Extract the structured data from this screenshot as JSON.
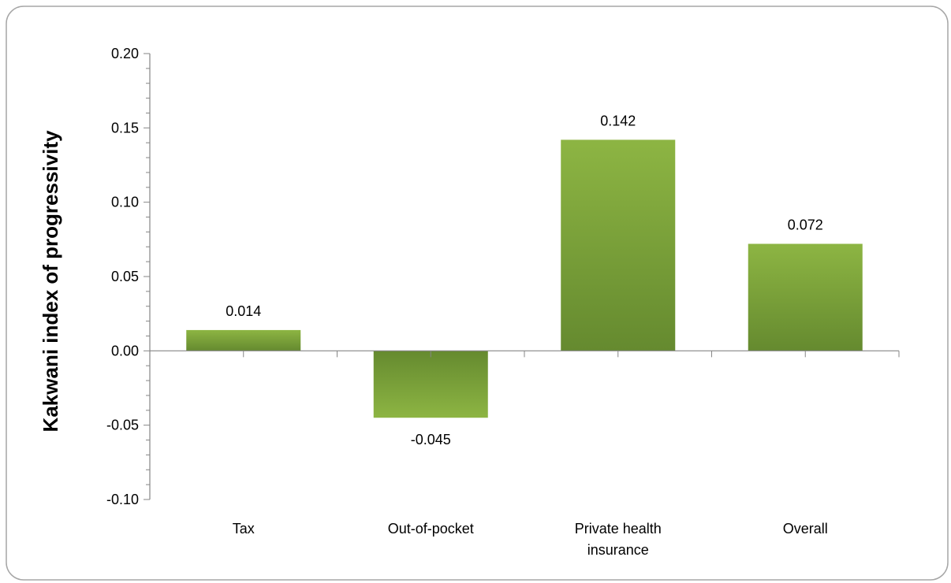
{
  "chart_data": {
    "type": "bar",
    "title": "",
    "xlabel": "",
    "ylabel": "Kakwani index of progressivity",
    "categories": [
      "Tax",
      "Out-of-pocket",
      "Private health insurance",
      "Overall"
    ],
    "category_lines": [
      [
        "Tax"
      ],
      [
        "Out-of-pocket"
      ],
      [
        "Private health",
        "insurance"
      ],
      [
        "Overall"
      ]
    ],
    "values": [
      0.014,
      -0.045,
      0.142,
      0.072
    ],
    "data_labels": [
      "0.014",
      "-0.045",
      "0.142",
      "0.072"
    ],
    "ylim": [
      -0.1,
      0.2
    ],
    "yticks": [
      0.2,
      0.15,
      0.1,
      0.05,
      0.0,
      -0.05,
      -0.1
    ],
    "ytick_labels": [
      "0.20",
      "0.15",
      "0.10",
      "0.05",
      "0.00",
      "-0.05",
      "-0.10"
    ],
    "grid": false,
    "legend": "none",
    "colors": {
      "bar_top": "#8DB543",
      "bar_bottom": "#658A2F",
      "axis": "#868686",
      "border": "#A6A6A6"
    }
  }
}
